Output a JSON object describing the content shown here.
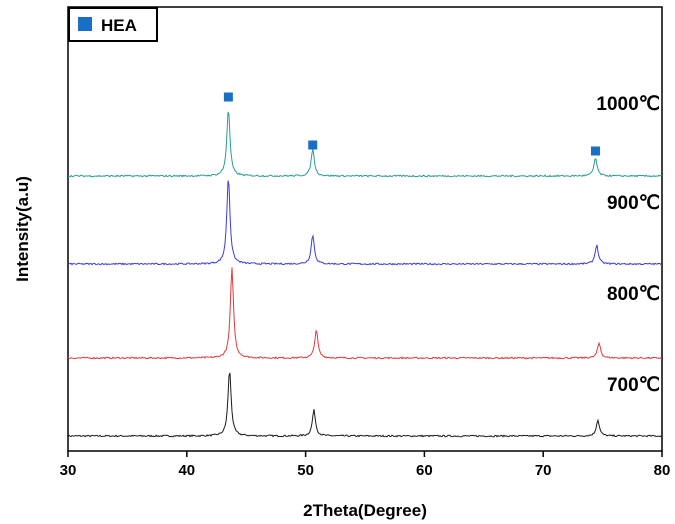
{
  "chart_data": {
    "type": "line",
    "xlabel": "2Theta(Degree)",
    "ylabel": "Intensity(a.u)",
    "xlim": [
      30,
      80
    ],
    "xticks": [
      "30",
      "40",
      "50",
      "60",
      "70",
      "80"
    ],
    "grid": false,
    "legend": {
      "position": "top-left",
      "entries": [
        {
          "label": "HEA",
          "marker": "square",
          "color": "#1a6fc4"
        }
      ]
    },
    "hea_peak_positions": [
      43.5,
      50.6,
      74.4
    ],
    "series": [
      {
        "name": "700℃",
        "color": "#1a1a1a",
        "peaks": [
          {
            "x": 43.6,
            "height": 66
          },
          {
            "x": 50.7,
            "height": 26
          },
          {
            "x": 74.6,
            "height": 16
          }
        ]
      },
      {
        "name": "800℃",
        "color": "#e0393b",
        "peaks": [
          {
            "x": 43.8,
            "height": 90
          },
          {
            "x": 50.9,
            "height": 28
          },
          {
            "x": 74.7,
            "height": 15
          }
        ]
      },
      {
        "name": "900℃",
        "color": "#3b3bdb",
        "peaks": [
          {
            "x": 43.5,
            "height": 87
          },
          {
            "x": 50.6,
            "height": 29
          },
          {
            "x": 74.5,
            "height": 19
          }
        ]
      },
      {
        "name": "1000℃",
        "color": "#2a9a93",
        "peaks": [
          {
            "x": 43.5,
            "height": 67
          },
          {
            "x": 50.6,
            "height": 27
          },
          {
            "x": 74.4,
            "height": 18
          }
        ]
      }
    ]
  }
}
